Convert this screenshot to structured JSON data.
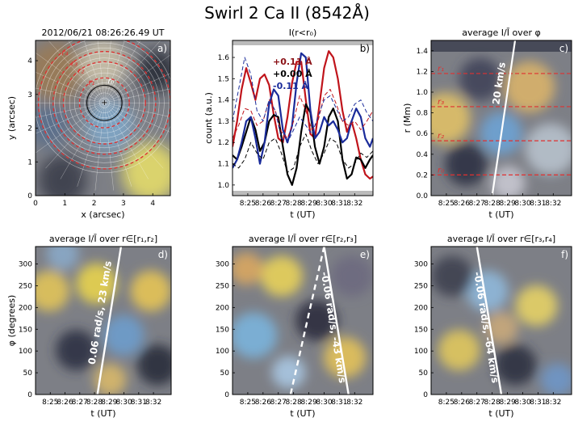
{
  "figure_title": "Swirl 2 Ca II (8542Å)",
  "chart_data": [
    {
      "type": "heatmap",
      "panel": "a)",
      "title": "2012/06/21 08:26:26.49 UT",
      "xlabel": "x (arcsec)",
      "ylabel": "y (arcsec)",
      "xlim": [
        0,
        4.6
      ],
      "ylim": [
        0,
        4.6
      ],
      "xticks": [
        "0",
        "1",
        "2",
        "3",
        "4"
      ],
      "yticks": [
        "0",
        "1",
        "2",
        "3",
        "4"
      ],
      "center": [
        2.35,
        2.75
      ],
      "circles": [
        {
          "name": "r0",
          "label": "r₀",
          "radius": 0.6,
          "color": "#111111",
          "dashed": false
        },
        {
          "name": "r1",
          "label": "r₁",
          "radius": 0.85,
          "color": "#e03030",
          "dashed": true
        },
        {
          "name": "r2",
          "label": "r₂",
          "radius": 1.4,
          "color": "#e03030",
          "dashed": true
        },
        {
          "name": "r3",
          "label": "r₃",
          "radius": 1.75,
          "color": "#e03030",
          "dashed": true
        },
        {
          "name": "r4",
          "label": "r₄",
          "radius": 2.25,
          "color": "#e03030",
          "dashed": true
        }
      ]
    },
    {
      "type": "line",
      "panel": "b)",
      "title": "I(r<r₀)",
      "xlabel": "t (UT)",
      "ylabel": "count (a.u.)",
      "ylim": [
        0.95,
        1.68
      ],
      "xlim": [
        0,
        9.2
      ],
      "xticks": [
        "8:25",
        "8:26",
        "8:27",
        "8:28",
        "8:29",
        "8:30",
        "8:31",
        "8:32"
      ],
      "yticks": [
        "1.0",
        "1.1",
        "1.2",
        "1.3",
        "1.4",
        "1.5",
        "1.6"
      ],
      "legend": [
        "+0.11 Å",
        "+0.00 Å",
        "-0.11 Å"
      ],
      "series": [
        {
          "name": "+0.11",
          "color": "#c0141b",
          "style": "solid",
          "x": [
            0,
            0.3,
            0.6,
            0.9,
            1.2,
            1.5,
            1.8,
            2.1,
            2.4,
            2.7,
            3.0,
            3.3,
            3.6,
            3.9,
            4.2,
            4.5,
            4.8,
            5.1,
            5.4,
            5.7,
            6.0,
            6.3,
            6.6,
            6.9,
            7.2,
            7.5,
            7.8,
            8.1,
            8.4,
            8.7,
            9.0,
            9.2
          ],
          "y": [
            1.18,
            1.3,
            1.45,
            1.55,
            1.48,
            1.4,
            1.5,
            1.52,
            1.47,
            1.33,
            1.22,
            1.2,
            1.32,
            1.48,
            1.58,
            1.58,
            1.4,
            1.24,
            1.22,
            1.38,
            1.55,
            1.63,
            1.6,
            1.5,
            1.35,
            1.25,
            1.3,
            1.22,
            1.12,
            1.05,
            1.03,
            1.04
          ]
        },
        {
          "name": "+0.00",
          "color": "#000000",
          "style": "solid",
          "x": [
            0,
            0.3,
            0.6,
            0.9,
            1.2,
            1.5,
            1.8,
            2.1,
            2.4,
            2.7,
            3.0,
            3.3,
            3.6,
            3.9,
            4.2,
            4.5,
            4.8,
            5.1,
            5.4,
            5.7,
            6.0,
            6.3,
            6.6,
            6.9,
            7.2,
            7.5,
            7.8,
            8.1,
            8.4,
            8.7,
            9.0,
            9.2
          ],
          "y": [
            1.14,
            1.12,
            1.18,
            1.25,
            1.32,
            1.26,
            1.16,
            1.2,
            1.3,
            1.33,
            1.32,
            1.18,
            1.05,
            1.0,
            1.08,
            1.25,
            1.38,
            1.34,
            1.18,
            1.1,
            1.18,
            1.32,
            1.36,
            1.3,
            1.12,
            1.03,
            1.05,
            1.13,
            1.12,
            1.08,
            1.12,
            1.14
          ]
        },
        {
          "name": "-0.11",
          "color": "#1a2b9a",
          "style": "solid",
          "x": [
            0,
            0.3,
            0.6,
            0.9,
            1.2,
            1.5,
            1.8,
            2.1,
            2.4,
            2.7,
            3.0,
            3.3,
            3.6,
            3.9,
            4.2,
            4.5,
            4.8,
            5.1,
            5.4,
            5.7,
            6.0,
            6.3,
            6.6,
            6.9,
            7.2,
            7.5,
            7.8,
            8.1,
            8.4,
            8.7,
            9.0,
            9.2
          ],
          "y": [
            1.08,
            1.12,
            1.2,
            1.3,
            1.32,
            1.22,
            1.1,
            1.2,
            1.38,
            1.45,
            1.42,
            1.26,
            1.2,
            1.28,
            1.48,
            1.62,
            1.6,
            1.35,
            1.22,
            1.25,
            1.32,
            1.28,
            1.3,
            1.26,
            1.2,
            1.22,
            1.3,
            1.36,
            1.32,
            1.22,
            1.18,
            1.22
          ]
        },
        {
          "name": "+0.11 ref",
          "color": "#c0141b",
          "style": "dashed",
          "x": [
            0,
            0.4,
            0.8,
            1.2,
            1.6,
            2.0,
            2.4,
            2.8,
            3.2,
            3.6,
            4.0,
            4.4,
            4.8,
            5.2,
            5.6,
            6.0,
            6.4,
            6.8,
            7.2,
            7.6,
            8.0,
            8.4,
            8.8,
            9.2
          ],
          "y": [
            1.22,
            1.28,
            1.36,
            1.35,
            1.28,
            1.3,
            1.4,
            1.35,
            1.25,
            1.22,
            1.3,
            1.42,
            1.35,
            1.26,
            1.3,
            1.42,
            1.45,
            1.38,
            1.3,
            1.28,
            1.3,
            1.26,
            1.3,
            1.35
          ]
        },
        {
          "name": "+0.00 ref",
          "color": "#000000",
          "style": "dashed",
          "x": [
            0,
            0.4,
            0.8,
            1.2,
            1.6,
            2.0,
            2.4,
            2.8,
            3.2,
            3.6,
            4.0,
            4.4,
            4.8,
            5.2,
            5.6,
            6.0,
            6.4,
            6.8,
            7.2,
            7.6,
            8.0,
            8.4,
            8.8,
            9.2
          ],
          "y": [
            1.1,
            1.08,
            1.12,
            1.2,
            1.15,
            1.12,
            1.2,
            1.22,
            1.15,
            1.06,
            1.08,
            1.18,
            1.24,
            1.16,
            1.1,
            1.15,
            1.22,
            1.2,
            1.12,
            1.08,
            1.1,
            1.15,
            1.13,
            1.16
          ]
        },
        {
          "name": "-0.11 ref",
          "color": "#1a2b9a",
          "style": "dashed",
          "x": [
            0,
            0.4,
            0.8,
            1.2,
            1.6,
            2.0,
            2.4,
            2.8,
            3.2,
            3.6,
            4.0,
            4.4,
            4.8,
            5.2,
            5.6,
            6.0,
            6.4,
            6.8,
            7.2,
            7.6,
            8.0,
            8.4,
            8.8,
            9.2
          ],
          "y": [
            1.3,
            1.45,
            1.6,
            1.52,
            1.35,
            1.3,
            1.4,
            1.35,
            1.22,
            1.2,
            1.26,
            1.32,
            1.28,
            1.24,
            1.32,
            1.4,
            1.42,
            1.36,
            1.3,
            1.32,
            1.38,
            1.4,
            1.34,
            1.3
          ]
        }
      ]
    },
    {
      "type": "heatmap",
      "panel": "c)",
      "title": "average I/Ī over φ",
      "xlabel": "t (UT)",
      "ylabel": "r (Mm)",
      "ylim": [
        0,
        1.5
      ],
      "xlim": [
        0,
        9.2
      ],
      "xticks": [
        "8:25",
        "8:26",
        "8:27",
        "8:28",
        "8:29",
        "8:30",
        "8:31",
        "8:32"
      ],
      "yticks": [
        "0.0",
        "0.2",
        "0.4",
        "0.6",
        "0.8",
        "1.0",
        "1.2",
        "1.4"
      ],
      "hlines": [
        {
          "label": "r₁",
          "value": 1.18
        },
        {
          "label": "r₃",
          "value": 0.86
        },
        {
          "label": "r₂",
          "value": 0.53
        },
        {
          "label": "r₀",
          "value": 0.2
        }
      ],
      "fit_lines": [
        {
          "label": "20 km/s",
          "x0": 4.0,
          "y0": 0.0,
          "x1": 5.5,
          "y1": 1.5,
          "dashed": false
        }
      ]
    },
    {
      "type": "heatmap",
      "panel": "d)",
      "title": "average I/Ī over r∈[r₁,r₂]",
      "xlabel": "t (UT)",
      "ylabel": "φ (degrees)",
      "ylim": [
        0,
        340
      ],
      "xlim": [
        0,
        9.2
      ],
      "xticks": [
        "8:25",
        "8:26",
        "8:27",
        "8:28",
        "8:29",
        "8:30",
        "8:31",
        "8:32"
      ],
      "yticks": [
        "0",
        "50",
        "100",
        "150",
        "200",
        "250",
        "300"
      ],
      "fit_lines": [
        {
          "label": "0.06 rad/s, 23 km/s",
          "x0": 4.2,
          "y0": 0,
          "x1": 5.8,
          "y1": 340,
          "dashed": false
        }
      ]
    },
    {
      "type": "heatmap",
      "panel": "e)",
      "title": "average I/Ī over r∈[r₂,r₃]",
      "xlabel": "t (UT)",
      "ylabel": "",
      "ylim": [
        0,
        340
      ],
      "xlim": [
        0,
        9.2
      ],
      "xticks": [
        "8:25",
        "8:26",
        "8:27",
        "8:28",
        "8:29",
        "8:30",
        "8:31",
        "8:32"
      ],
      "yticks": [
        "0",
        "50",
        "100",
        "150",
        "200",
        "250",
        "300"
      ],
      "fit_lines": [
        {
          "label": "-0.06 rad/s, -43 km/s",
          "x0": 6.0,
          "y0": 340,
          "x1": 7.6,
          "y1": 0,
          "dashed": false
        },
        {
          "label": "",
          "x0": 6.0,
          "y0": 340,
          "x1": 3.8,
          "y1": 0,
          "dashed": true
        }
      ]
    },
    {
      "type": "heatmap",
      "panel": "f)",
      "title": "average I/Ī over r∈[r₃,r₄]",
      "xlabel": "t (UT)",
      "ylabel": "",
      "ylim": [
        0,
        340
      ],
      "xlim": [
        0,
        9.2
      ],
      "xticks": [
        "8:25",
        "8:26",
        "8:27",
        "8:28",
        "8:29",
        "8:30",
        "8:31",
        "8:32"
      ],
      "yticks": [
        "0",
        "50",
        "100",
        "150",
        "200",
        "250",
        "300"
      ],
      "fit_lines": [
        {
          "label": "-0.06 rad/s, -64 km/s",
          "x0": 3.0,
          "y0": 340,
          "x1": 4.6,
          "y1": 0,
          "dashed": false
        }
      ]
    }
  ]
}
